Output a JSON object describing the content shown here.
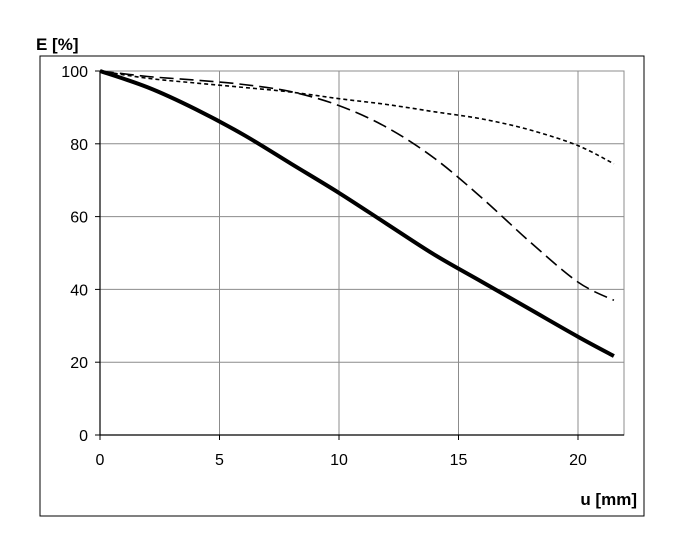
{
  "chart_data": {
    "type": "line",
    "title": "",
    "xlabel": "u [mm]",
    "ylabel": "E [%]",
    "xlim": [
      0,
      22
    ],
    "ylim": [
      0,
      100
    ],
    "x_ticks": [
      0,
      5,
      10,
      15,
      20
    ],
    "y_ticks": [
      0,
      20,
      40,
      60,
      80,
      100
    ],
    "x_tick_labels": [
      "0",
      "5",
      "10",
      "15",
      "20"
    ],
    "y_tick_labels": [
      "0",
      "20",
      "40",
      "60",
      "80",
      "100"
    ],
    "grid": true,
    "legend": "none",
    "series": [
      {
        "style": "solid-thick",
        "color": "#000000",
        "x": [
          0,
          2,
          4,
          6,
          8,
          10,
          12,
          14,
          16,
          18,
          20,
          21.5
        ],
        "y": [
          100,
          95.5,
          89.5,
          82.5,
          74.5,
          66.5,
          58,
          49.5,
          42,
          34.5,
          27,
          21.7
        ]
      },
      {
        "style": "long-dash",
        "color": "#000000",
        "x": [
          0,
          2,
          4,
          6,
          8,
          10,
          12,
          14,
          16,
          18,
          20,
          21.5
        ],
        "y": [
          100,
          98.5,
          97.5,
          96.3,
          94.3,
          90.5,
          84.5,
          76,
          65,
          53,
          42,
          37
        ]
      },
      {
        "style": "short-dash",
        "color": "#000000",
        "x": [
          0,
          2,
          4,
          6,
          8,
          10,
          12,
          14,
          16,
          18,
          20,
          21.5
        ],
        "y": [
          100,
          98,
          96.7,
          95.5,
          94.2,
          92.4,
          90.8,
          88.8,
          86.8,
          83.8,
          79.5,
          74.5
        ]
      }
    ]
  }
}
